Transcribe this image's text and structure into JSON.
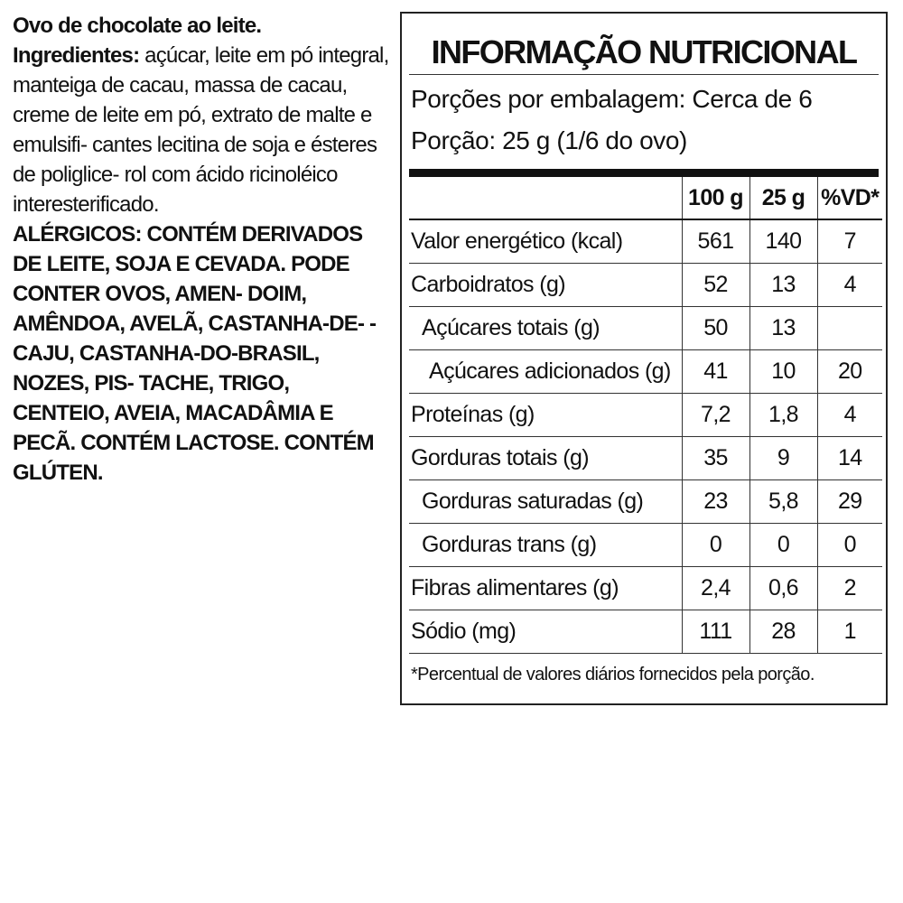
{
  "product": {
    "name": "Ovo de chocolate ao leite.",
    "ingredients_label": "Ingredientes:",
    "ingredients_lines": [
      " açúcar, leite em pó integral,",
      "manteiga de cacau, massa de cacau, creme",
      "de leite em pó, extrato de malte e emulsifi-",
      "cantes lecitina de soja e ésteres de poliglice-",
      "rol com ácido ricinoléico interesterificado."
    ],
    "allergens_lines": [
      "ALÉRGICOS: CONTÉM DERIVADOS DE LEITE,",
      "SOJA E CEVADA. PODE CONTER OVOS, AMEN-",
      "DOIM, AMÊNDOA, AVELÃ, CASTANHA-DE-",
      "-CAJU, CASTANHA-DO-BRASIL, NOZES, PIS-",
      "TACHE, TRIGO, CENTEIO, AVEIA, MACADÂMIA",
      "E PECÃ. CONTÉM LACTOSE. CONTÉM GLÚTEN."
    ]
  },
  "nutrition": {
    "title": "INFORMAÇÃO NUTRICIONAL",
    "servings_per_package": "Porções por embalagem: Cerca de 6",
    "serving_size": "Porção: 25 g (1/6 do ovo)",
    "columns": [
      "100 g",
      "25 g",
      "%VD*"
    ],
    "rows": [
      {
        "label": "Valor energético (kcal)",
        "indent": 0,
        "v100": "561",
        "v25": "140",
        "vd": "7"
      },
      {
        "label": "Carboidratos (g)",
        "indent": 0,
        "v100": "52",
        "v25": "13",
        "vd": "4"
      },
      {
        "label": "Açúcares totais (g)",
        "indent": 1,
        "v100": "50",
        "v25": "13",
        "vd": ""
      },
      {
        "label": "Açúcares adicionados (g)",
        "indent": 2,
        "v100": "41",
        "v25": "10",
        "vd": "20"
      },
      {
        "label": "Proteínas (g)",
        "indent": 0,
        "v100": "7,2",
        "v25": "1,8",
        "vd": "4"
      },
      {
        "label": "Gorduras totais (g)",
        "indent": 0,
        "v100": "35",
        "v25": "9",
        "vd": "14"
      },
      {
        "label": "Gorduras saturadas (g)",
        "indent": 1,
        "v100": "23",
        "v25": "5,8",
        "vd": "29"
      },
      {
        "label": "Gorduras trans (g)",
        "indent": 1,
        "v100": "0",
        "v25": "0",
        "vd": "0"
      },
      {
        "label": "Fibras alimentares (g)",
        "indent": 0,
        "v100": "2,4",
        "v25": "0,6",
        "vd": "2"
      },
      {
        "label": "Sódio (mg)",
        "indent": 0,
        "v100": "111",
        "v25": "28",
        "vd": "1"
      }
    ],
    "footnote": "*Percentual de valores diários fornecidos pela porção."
  }
}
